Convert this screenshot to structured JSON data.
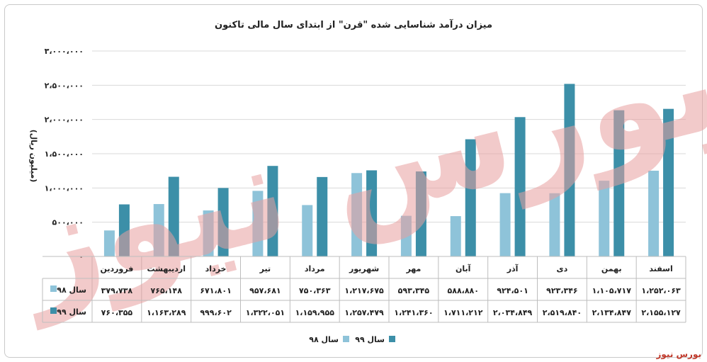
{
  "chart_data": {
    "type": "bar",
    "title": "میزان درآمد شناسایی شده \"قرن\" از ابتدای سال مالی تاکنون",
    "ylabel": "(میلیون ریال)",
    "ylim": [
      0,
      3000000
    ],
    "y_ticks": [
      "۰",
      "۵۰۰،۰۰۰",
      "۱،۰۰۰،۰۰۰",
      "۱،۵۰۰،۰۰۰",
      "۲،۰۰۰،۰۰۰",
      "۲،۵۰۰،۰۰۰",
      "۳،۰۰۰،۰۰۰"
    ],
    "categories": [
      "فروردین",
      "اردیبهشت",
      "خرداد",
      "تیر",
      "مرداد",
      "شهریور",
      "مهر",
      "آبان",
      "آذر",
      "دی",
      "بهمن",
      "اسفند"
    ],
    "series": [
      {
        "name": "سال ۹۸",
        "color": "#8ec3d9",
        "values": [
          379738,
          765148,
          671801,
          957681,
          750363,
          1217675,
          593345,
          588880,
          924501,
          923346,
          1105717,
          1252063
        ],
        "labels": [
          "۳۷۹،۷۳۸",
          "۷۶۵،۱۴۸",
          "۶۷۱،۸۰۱",
          "۹۵۷،۶۸۱",
          "۷۵۰،۳۶۳",
          "۱،۲۱۷،۶۷۵",
          "۵۹۳،۳۴۵",
          "۵۸۸،۸۸۰",
          "۹۲۴،۵۰۱",
          "۹۲۳،۳۴۶",
          "۱،۱۰۵،۷۱۷",
          "۱،۲۵۲،۰۶۳"
        ]
      },
      {
        "name": "سال ۹۹",
        "color": "#3c8fa8",
        "values": [
          760355,
          1163289,
          999602,
          1322051,
          1159955,
          1257479,
          1241360,
          1711212,
          2034849,
          2519840,
          2134847,
          2155127
        ],
        "labels": [
          "۷۶۰،۳۵۵",
          "۱،۱۶۳،۲۸۹",
          "۹۹۹،۶۰۲",
          "۱،۳۲۲،۰۵۱",
          "۱،۱۵۹،۹۵۵",
          "۱،۲۵۷،۴۷۹",
          "۱،۲۴۱،۳۶۰",
          "۱،۷۱۱،۲۱۲",
          "۲،۰۳۴،۸۴۹",
          "۲،۵۱۹،۸۴۰",
          "۲،۱۳۴،۸۴۷",
          "۲،۱۵۵،۱۲۷"
        ]
      }
    ],
    "grid": true,
    "legend": "bottom-center"
  },
  "watermark": {
    "text": "بورس نیوز",
    "color": "#e8a0a0"
  },
  "brand": {
    "text": "بورس نیوز",
    "color": "#c0392b"
  }
}
